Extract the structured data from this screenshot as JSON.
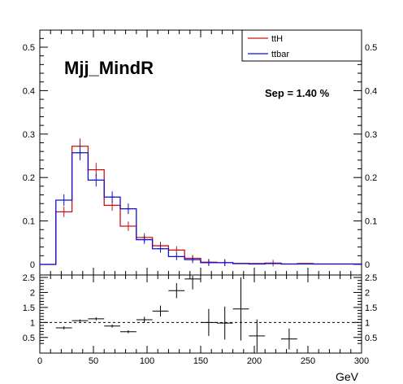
{
  "chart_data": [
    {
      "type": "histogram",
      "title": "Mjj_MindR",
      "annotation": "Sep = 1.40 %",
      "xlabel": "GeV",
      "xlim": [
        0,
        300
      ],
      "ylim": [
        0,
        0.54
      ],
      "bin_width": 15,
      "x_ticks": [
        "0",
        "50",
        "100",
        "150",
        "200",
        "250",
        "300"
      ],
      "y_ticks": [
        "0",
        "0.1",
        "0.2",
        "0.3",
        "0.4",
        "0.5"
      ],
      "legend": {
        "placement": "top-right",
        "entries": [
          "ttH",
          "ttbar"
        ]
      },
      "series": [
        {
          "name": "ttH",
          "color": "#d01010",
          "values": [
            0.0,
            0.121,
            0.272,
            0.218,
            0.136,
            0.088,
            0.062,
            0.043,
            0.033,
            0.014,
            0.005,
            0.004,
            0.002,
            0.002,
            0.003,
            0.001,
            0.002,
            0.001,
            0.001,
            0.001
          ]
        },
        {
          "name": "ttbar",
          "color": "#1010d0",
          "values": [
            0.0,
            0.148,
            0.257,
            0.194,
            0.155,
            0.128,
            0.057,
            0.036,
            0.018,
            0.011,
            0.004,
            0.004,
            0.002,
            0.001,
            0.002,
            0.001,
            0.001,
            0.001,
            0.001,
            0.001
          ]
        }
      ]
    },
    {
      "type": "scatter",
      "title": "",
      "xlabel": "GeV",
      "xlim": [
        0,
        300
      ],
      "ylim": [
        0.25,
        2.5
      ],
      "reference_line": 1,
      "x_ticks": [
        "0",
        "50",
        "100",
        "150",
        "200",
        "250",
        "300"
      ],
      "y_ticks": [
        "0.5",
        "1",
        "1.5",
        "2",
        "2.5"
      ],
      "points": [
        {
          "x": 22.5,
          "y": 0.82,
          "xerr": 7.5,
          "yerr": 0.05
        },
        {
          "x": 37.5,
          "y": 1.06,
          "xerr": 7.5,
          "yerr": 0.04
        },
        {
          "x": 52.5,
          "y": 1.12,
          "xerr": 7.5,
          "yerr": 0.05
        },
        {
          "x": 67.5,
          "y": 0.88,
          "xerr": 7.5,
          "yerr": 0.05
        },
        {
          "x": 82.5,
          "y": 0.69,
          "xerr": 7.5,
          "yerr": 0.05
        },
        {
          "x": 97.5,
          "y": 1.09,
          "xerr": 7.5,
          "yerr": 0.1
        },
        {
          "x": 112.5,
          "y": 1.38,
          "xerr": 7.5,
          "yerr": 0.18
        },
        {
          "x": 127.5,
          "y": 2.06,
          "xerr": 7.5,
          "yerr": 0.25
        },
        {
          "x": 142.5,
          "y": 2.45,
          "xerr": 7.5,
          "yerr": 0.35
        },
        {
          "x": 157.5,
          "y": 1.0,
          "xerr": 7.5,
          "yerr": 0.45
        },
        {
          "x": 172.5,
          "y": 0.98,
          "xerr": 7.5,
          "yerr": 0.55
        },
        {
          "x": 187.5,
          "y": 1.45,
          "xerr": 7.5,
          "yerr": 1.05
        },
        {
          "x": 202.5,
          "y": 0.55,
          "xerr": 7.5,
          "yerr": 0.55
        },
        {
          "x": 232.5,
          "y": 0.45,
          "xerr": 7.5,
          "yerr": 0.35
        }
      ]
    }
  ]
}
